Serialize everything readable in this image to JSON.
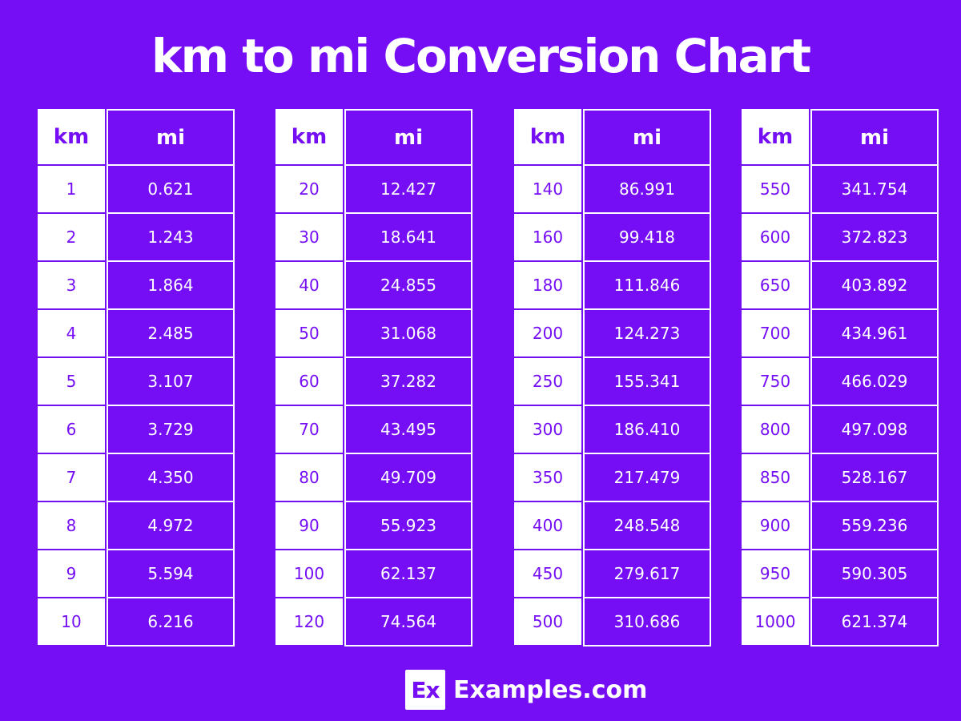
{
  "title": "km to mi Conversion Chart",
  "colors": {
    "background": "#750DF5",
    "km_cell": "#FFFFFF",
    "text_on_purple": "#FFFFFF"
  },
  "tables": [
    {
      "headers": [
        "km",
        "mi"
      ],
      "rows": [
        [
          "1",
          "0.621"
        ],
        [
          "2",
          "1.243"
        ],
        [
          "3",
          "1.864"
        ],
        [
          "4",
          "2.485"
        ],
        [
          "5",
          "3.107"
        ],
        [
          "6",
          "3.729"
        ],
        [
          "7",
          "4.350"
        ],
        [
          "8",
          "4.972"
        ],
        [
          "9",
          "5.594"
        ],
        [
          "10",
          "6.216"
        ]
      ]
    },
    {
      "headers": [
        "km",
        "mi"
      ],
      "rows": [
        [
          "20",
          "12.427"
        ],
        [
          "30",
          "18.641"
        ],
        [
          "40",
          "24.855"
        ],
        [
          "50",
          "31.068"
        ],
        [
          "60",
          "37.282"
        ],
        [
          "70",
          "43.495"
        ],
        [
          "80",
          "49.709"
        ],
        [
          "90",
          "55.923"
        ],
        [
          "100",
          "62.137"
        ],
        [
          "120",
          "74.564"
        ]
      ]
    },
    {
      "headers": [
        "km",
        "mi"
      ],
      "rows": [
        [
          "140",
          "86.991"
        ],
        [
          "160",
          "99.418"
        ],
        [
          "180",
          "111.846"
        ],
        [
          "200",
          "124.273"
        ],
        [
          "250",
          "155.341"
        ],
        [
          "300",
          "186.410"
        ],
        [
          "350",
          "217.479"
        ],
        [
          "400",
          "248.548"
        ],
        [
          "450",
          "279.617"
        ],
        [
          "500",
          "310.686"
        ]
      ]
    },
    {
      "headers": [
        "km",
        "mi"
      ],
      "rows": [
        [
          "550",
          "341.754"
        ],
        [
          "600",
          "372.823"
        ],
        [
          "650",
          "403.892"
        ],
        [
          "700",
          "434.961"
        ],
        [
          "750",
          "466.029"
        ],
        [
          "800",
          "497.098"
        ],
        [
          "850",
          "528.167"
        ],
        [
          "900",
          "559.236"
        ],
        [
          "950",
          "590.305"
        ],
        [
          "1000",
          "621.374"
        ]
      ]
    }
  ],
  "logo": {
    "mark": "Ex",
    "text": "Examples.com"
  }
}
